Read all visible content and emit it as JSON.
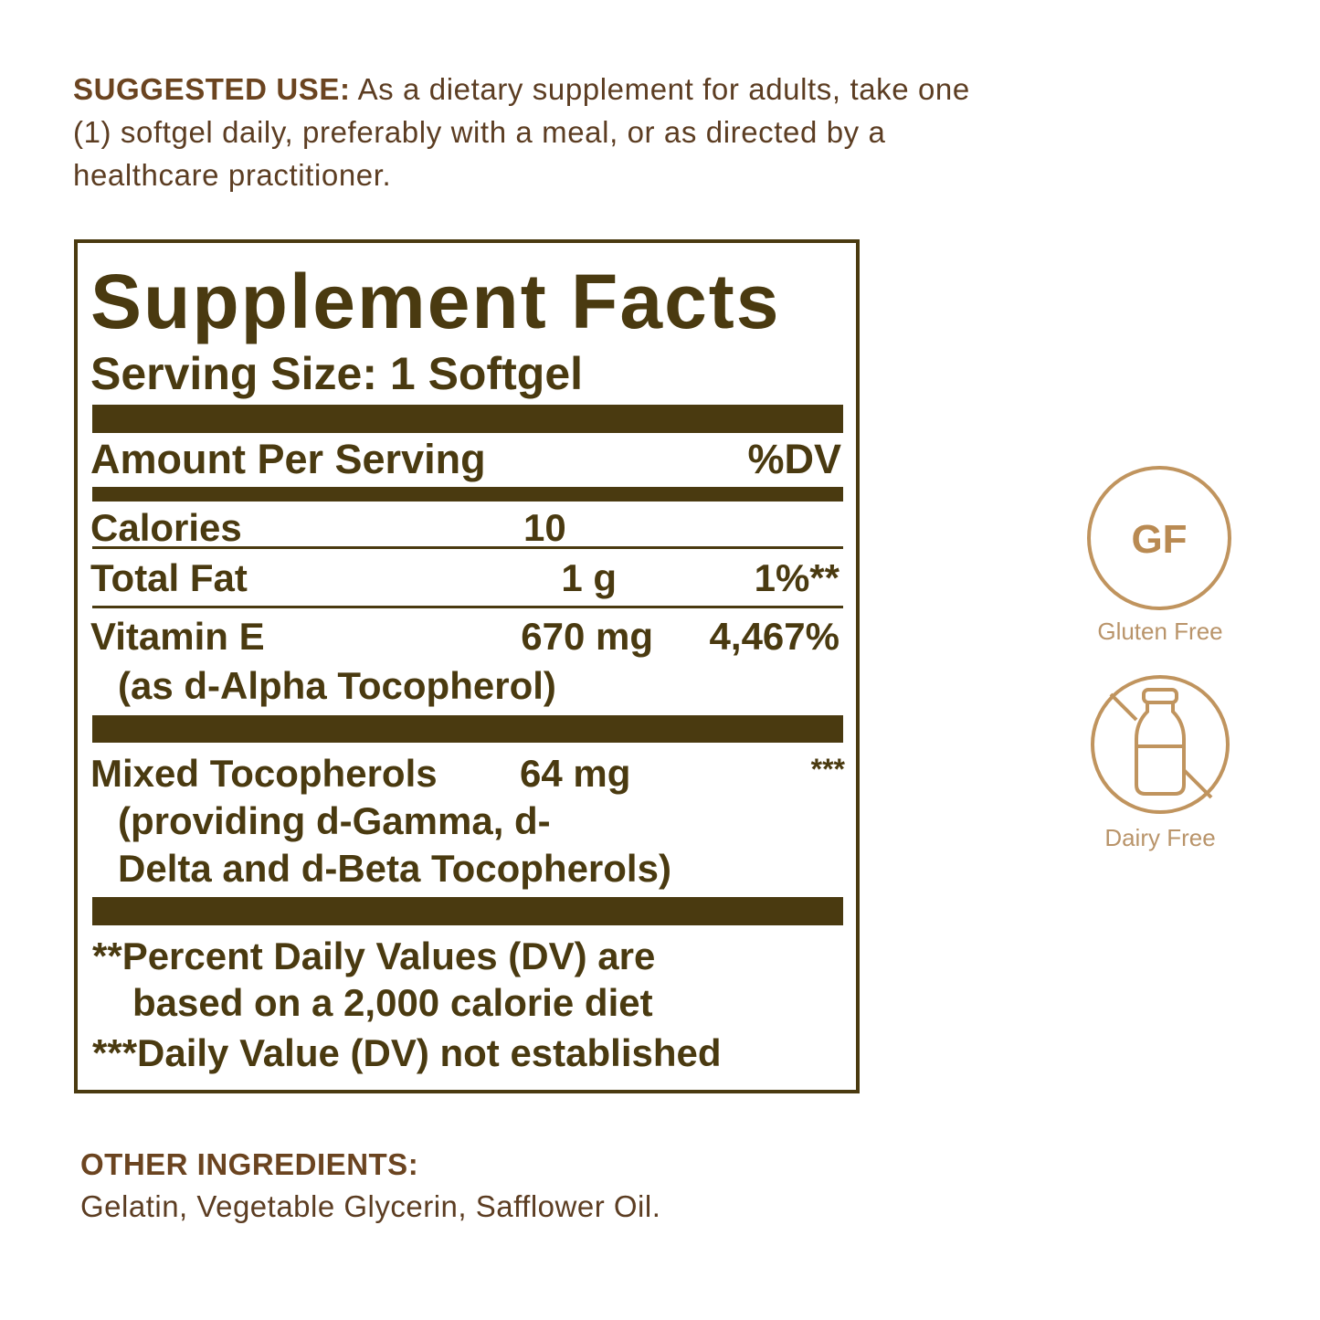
{
  "suggested_use": {
    "label": "SUGGESTED USE:",
    "text": " As a dietary supplement for adults, take one (1) softgel daily, preferably with a meal, or as directed by a healthcare practitioner."
  },
  "facts": {
    "title": "Supplement Facts",
    "serving_size": "Serving Size: 1 Softgel",
    "amount_header": "Amount Per Serving",
    "dv_header": "%DV",
    "rows": [
      {
        "name": "Calories",
        "amount": "10",
        "dv": ""
      },
      {
        "name": "Total Fat",
        "amount": "1 g",
        "dv": "1%**"
      },
      {
        "name": "Vitamin E",
        "sub": "(as d-Alpha Tocopherol)",
        "amount": "670 mg",
        "dv": "4,467%"
      },
      {
        "name": "Mixed Tocopherols",
        "sub1": "(providing d-Gamma, d-",
        "sub2": "Delta and d-Beta Tocopherols)",
        "amount": "64 mg",
        "dv": "***"
      }
    ],
    "footnote1a": "**Percent Daily Values (DV) are",
    "footnote1b": "based on a 2,000 calorie diet",
    "footnote2": "***Daily Value (DV) not established"
  },
  "other_ingredients": {
    "label": "OTHER INGREDIENTS:",
    "text": "Gelatin, Vegetable Glycerin, Safflower Oil."
  },
  "badges": [
    {
      "icon": "gluten-free-icon",
      "mark": "GF",
      "label": "Gluten Free"
    },
    {
      "icon": "dairy-free-icon",
      "label": "Dairy Free"
    }
  ],
  "colors": {
    "panel": "#4a3a10",
    "text": "#5c3d22",
    "badge": "#c0945e"
  }
}
